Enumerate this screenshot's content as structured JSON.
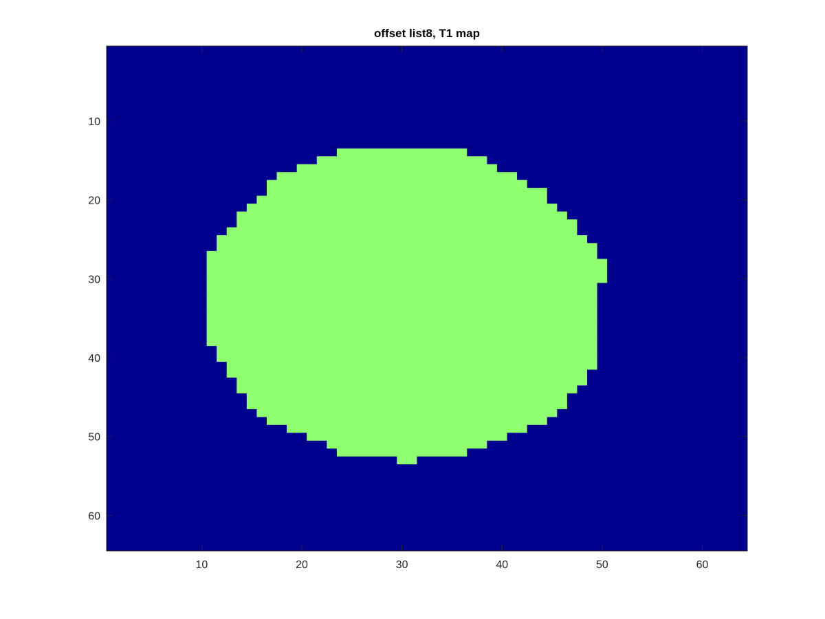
{
  "chart_data": {
    "type": "heatmap",
    "title": "offset list8, T1 map",
    "xlabel": "",
    "ylabel": "",
    "xlim": [
      0.5,
      64.5
    ],
    "ylim": [
      0.5,
      64.5
    ],
    "y_reversed": true,
    "grid": false,
    "colors": {
      "background": "#00008f",
      "region": "#8fff6f",
      "axes": "#262626"
    },
    "x_ticks": [
      10,
      20,
      30,
      40,
      50,
      60
    ],
    "y_ticks": [
      10,
      20,
      30,
      40,
      50,
      60
    ],
    "region_rows": [
      {
        "row": 14,
        "from": 24,
        "to": 36
      },
      {
        "row": 15,
        "from": 22,
        "to": 38
      },
      {
        "row": 16,
        "from": 20,
        "to": 39
      },
      {
        "row": 17,
        "from": 18,
        "to": 41
      },
      {
        "row": 18,
        "from": 17,
        "to": 42
      },
      {
        "row": 19,
        "from": 17,
        "to": 44
      },
      {
        "row": 20,
        "from": 16,
        "to": 44
      },
      {
        "row": 21,
        "from": 15,
        "to": 45
      },
      {
        "row": 22,
        "from": 14,
        "to": 46
      },
      {
        "row": 23,
        "from": 14,
        "to": 47
      },
      {
        "row": 24,
        "from": 13,
        "to": 47
      },
      {
        "row": 25,
        "from": 12,
        "to": 48
      },
      {
        "row": 26,
        "from": 12,
        "to": 49
      },
      {
        "row": 27,
        "from": 11,
        "to": 49
      },
      {
        "row": 28,
        "from": 11,
        "to": 50
      },
      {
        "row": 29,
        "from": 11,
        "to": 50
      },
      {
        "row": 30,
        "from": 11,
        "to": 50
      },
      {
        "row": 31,
        "from": 11,
        "to": 49
      },
      {
        "row": 32,
        "from": 11,
        "to": 49
      },
      {
        "row": 33,
        "from": 11,
        "to": 49
      },
      {
        "row": 34,
        "from": 11,
        "to": 49
      },
      {
        "row": 35,
        "from": 11,
        "to": 49
      },
      {
        "row": 36,
        "from": 11,
        "to": 49
      },
      {
        "row": 37,
        "from": 11,
        "to": 49
      },
      {
        "row": 38,
        "from": 11,
        "to": 49
      },
      {
        "row": 39,
        "from": 12,
        "to": 49
      },
      {
        "row": 40,
        "from": 12,
        "to": 49
      },
      {
        "row": 41,
        "from": 13,
        "to": 49
      },
      {
        "row": 42,
        "from": 13,
        "to": 48
      },
      {
        "row": 43,
        "from": 14,
        "to": 48
      },
      {
        "row": 44,
        "from": 14,
        "to": 47
      },
      {
        "row": 45,
        "from": 15,
        "to": 46
      },
      {
        "row": 46,
        "from": 15,
        "to": 46
      },
      {
        "row": 47,
        "from": 16,
        "to": 45
      },
      {
        "row": 48,
        "from": 17,
        "to": 44
      },
      {
        "row": 49,
        "from": 19,
        "to": 42
      },
      {
        "row": 50,
        "from": 21,
        "to": 40
      },
      {
        "row": 51,
        "from": 23,
        "to": 38
      },
      {
        "row": 52,
        "from": 24,
        "to": 36
      },
      {
        "row": 53,
        "from": 30,
        "to": 31
      }
    ]
  }
}
